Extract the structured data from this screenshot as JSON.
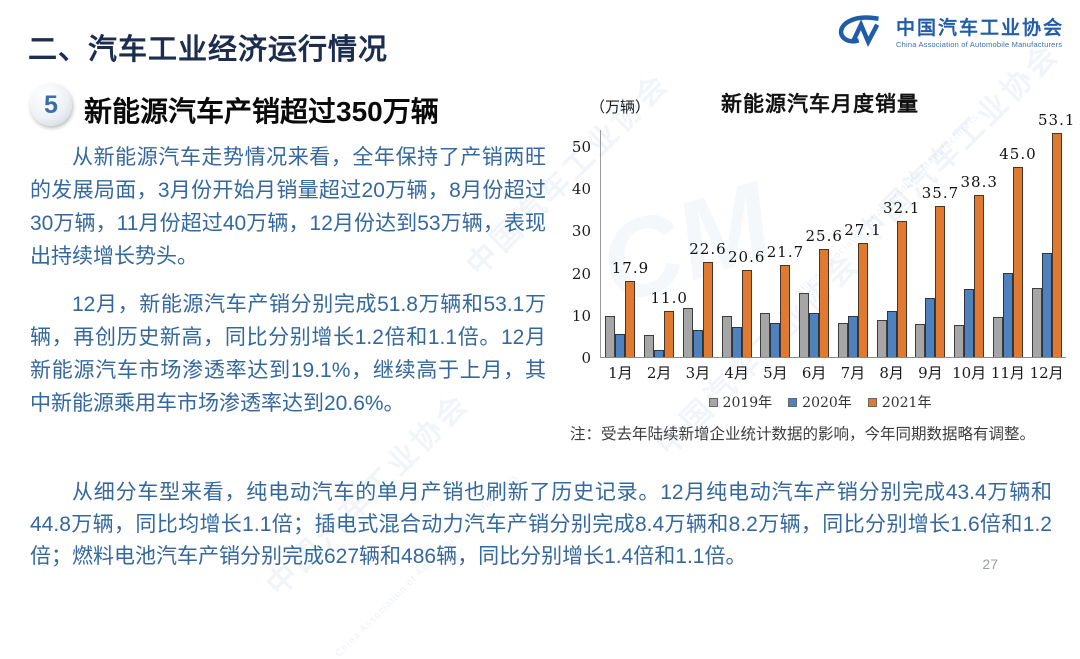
{
  "page": {
    "title": "二、汽车工业经济运行情况",
    "page_number": "27"
  },
  "logo": {
    "name_cn": "中国汽车工业协会",
    "name_en": "China Association of Automobile Manufacturers"
  },
  "section": {
    "badge": "5",
    "heading": "新能源汽车产销超过350万辆"
  },
  "paragraphs": {
    "p1": "从新能源汽车走势情况来看，全年保持了产销两旺的发展局面，3月份开始月销量超过20万辆，8月份超过30万辆，11月份超过40万辆，12月份达到53万辆，表现出持续增长势头。",
    "p2": "12月，新能源汽车产销分别完成51.8万辆和53.1万辆，再创历史新高，同比分别增长1.2倍和1.1倍。12月新能源汽车市场渗透率达到19.1%，继续高于上月，其中新能源乘用车市场渗透率达到20.6%。",
    "p3": "从细分车型来看，纯电动汽车的单月产销也刷新了历史记录。12月纯电动汽车产销分别完成43.4万辆和44.8万辆，同比均增长1.1倍；插电式混合动力汽车产销分别完成8.4万辆和8.2万辆，同比分别增长1.6倍和1.2倍；燃料电池汽车产销分别完成627辆和486辆，同比分别增长1.4倍和1.1倍。"
  },
  "chart_data": {
    "type": "bar",
    "title": "新能源汽车月度销量",
    "unit_label": "（万辆）",
    "note": "注：受去年陆续新增企业统计数据的影响，今年同期数据略有调整。",
    "categories": [
      "1月",
      "2月",
      "3月",
      "4月",
      "5月",
      "6月",
      "7月",
      "8月",
      "9月",
      "10月",
      "11月",
      "12月"
    ],
    "series": [
      {
        "name": "2019年",
        "color": "#a6a6a6",
        "values": [
          9.6,
          5.3,
          11.5,
          9.8,
          10.4,
          15.2,
          8.0,
          8.7,
          7.8,
          7.5,
          9.4,
          16.3
        ]
      },
      {
        "name": "2020年",
        "color": "#4f81bd",
        "values": [
          5.4,
          1.6,
          6.3,
          7.2,
          8.1,
          10.4,
          9.8,
          10.8,
          13.9,
          16.0,
          20.0,
          24.6
        ]
      },
      {
        "name": "2021年",
        "color": "#e07a30",
        "labels_shown": true,
        "values": [
          17.9,
          11.0,
          22.6,
          20.6,
          21.7,
          25.6,
          27.1,
          32.1,
          35.7,
          38.3,
          45.0,
          53.1
        ]
      }
    ],
    "ylabel_ticks": [
      0,
      10,
      20,
      30,
      40,
      50
    ],
    "ylim": [
      0,
      54
    ],
    "grid": false,
    "legend_position": "bottom"
  },
  "watermark": {
    "text": "中国汽车工业协会",
    "subtext": "China Association of Automobile Manufacturers",
    "mark": "CM"
  },
  "colors": {
    "title_navy": "#1c2d50",
    "body_blue": "#34689e",
    "logo_blue": "#1f5ca9",
    "bar_gray": "#a6a6a6",
    "bar_blue": "#4f81bd",
    "bar_orange": "#e07a30"
  }
}
